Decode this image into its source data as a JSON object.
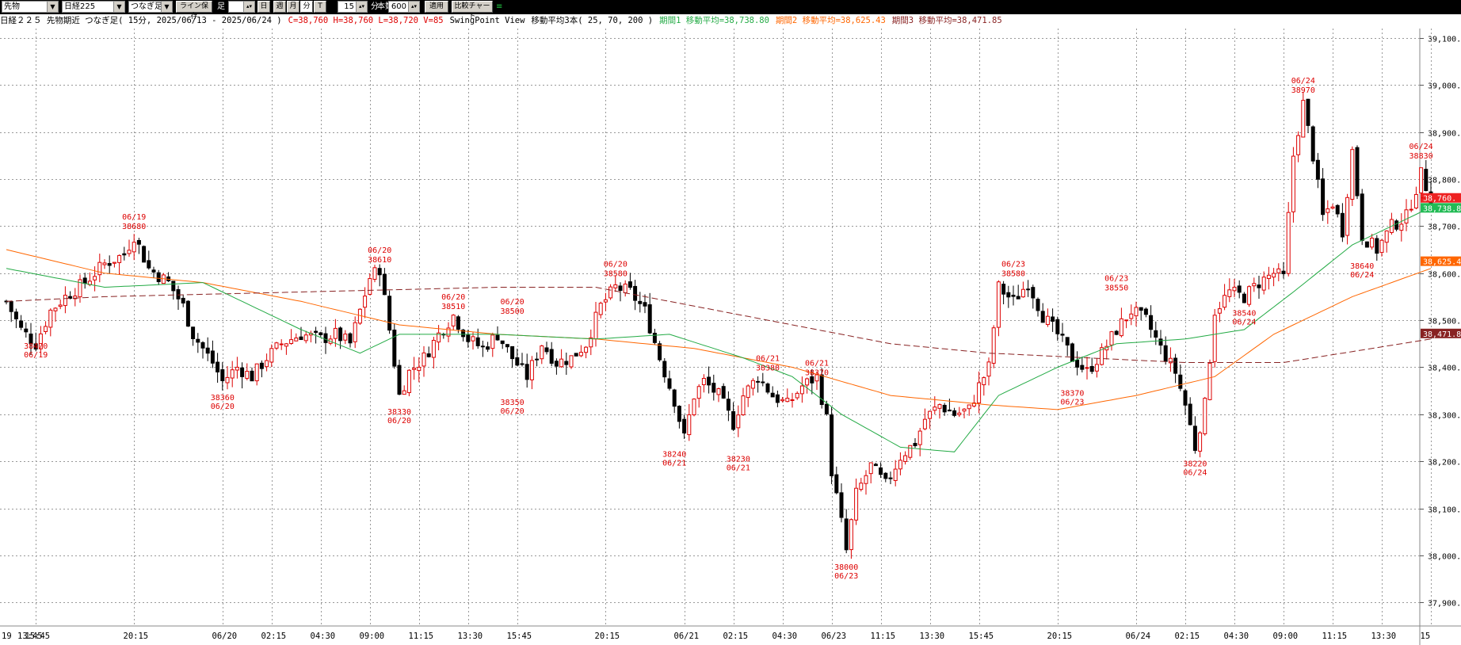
{
  "toolbar": {
    "market_select": "先物",
    "symbol_select": "日経225",
    "chain_select": "つなぎ足",
    "line_save_button": "ライン保存",
    "ashi_label": "足",
    "period_buttons": [
      "日",
      "週",
      "月",
      "分",
      "T"
    ],
    "active_period": "分",
    "interval_value": "15",
    "interval_unit": "分",
    "bars_value": "600",
    "bars_unit": "本数",
    "apply_button": "適用",
    "compare_button": "比較チャート"
  },
  "info": {
    "title": "日経２２５ 先物期近 つなぎ足( 15分, 2025/06/13 - 2025/06/24 )",
    "ohlc": "C=38,760 H=38,760 L=38,720 V=85",
    "indicator": "SwingPoint View",
    "ma_title": "移動平均3本( 25, 70, 200 )",
    "ma1_label": "期間1 移動平均=38,738.80",
    "ma2_label": "期間2 移動平均=38,625.43",
    "ma3_label": "期間3 移動平均=38,471.85"
  },
  "colors": {
    "ma1": "#22aa44",
    "ma2": "#ff6600",
    "ma3": "#882222",
    "swing": "#dd0000",
    "candle_up": "#dd0000",
    "candle_down": "#000000",
    "grid": "#999999"
  },
  "chart_data": {
    "type": "candlestick",
    "y_min": 37850,
    "y_max": 39120,
    "y_ticks": [
      "39,100.",
      "39,000.",
      "38,900.",
      "38,800.",
      "38,700.",
      "38,600.",
      "38,500.",
      "38,400.",
      "38,300.",
      "38,200.",
      "38,100.",
      "38,000.",
      "37,900."
    ],
    "y_tick_values": [
      39100,
      39000,
      38900,
      38800,
      38700,
      38600,
      38500,
      38400,
      38300,
      38200,
      38100,
      38000,
      37900
    ],
    "x_labels": [
      {
        "i": 0,
        "label": "19"
      },
      {
        "i": 2,
        "label": "13:45"
      },
      {
        "i": 6,
        "label": "15:45"
      },
      {
        "i": 26,
        "label": "20:15"
      },
      {
        "i": 44,
        "label": "06/20"
      },
      {
        "i": 54,
        "label": "02:15"
      },
      {
        "i": 64,
        "label": "04:30"
      },
      {
        "i": 74,
        "label": "09:00"
      },
      {
        "i": 84,
        "label": "11:15"
      },
      {
        "i": 94,
        "label": "13:30"
      },
      {
        "i": 104,
        "label": "15:45"
      },
      {
        "i": 122,
        "label": "20:15"
      },
      {
        "i": 138,
        "label": "06/21"
      },
      {
        "i": 148,
        "label": "02:15"
      },
      {
        "i": 158,
        "label": "04:30"
      },
      {
        "i": 168,
        "label": "06/23"
      },
      {
        "i": 178,
        "label": "11:15"
      },
      {
        "i": 188,
        "label": "13:30"
      },
      {
        "i": 198,
        "label": "15:45"
      },
      {
        "i": 214,
        "label": "20:15"
      },
      {
        "i": 230,
        "label": "06/24"
      },
      {
        "i": 240,
        "label": "02:15"
      },
      {
        "i": 250,
        "label": "04:30"
      },
      {
        "i": 260,
        "label": "09:00"
      },
      {
        "i": 270,
        "label": "11:15"
      },
      {
        "i": 280,
        "label": "13:30"
      },
      {
        "i": 290,
        "label": "15"
      }
    ],
    "x_total": 291,
    "anchors": [
      [
        0,
        38540
      ],
      [
        3,
        38480
      ],
      [
        6,
        38450
      ],
      [
        9,
        38520
      ],
      [
        12,
        38550
      ],
      [
        16,
        38580
      ],
      [
        20,
        38620
      ],
      [
        24,
        38640
      ],
      [
        26,
        38680
      ],
      [
        29,
        38610
      ],
      [
        33,
        38580
      ],
      [
        36,
        38530
      ],
      [
        38,
        38470
      ],
      [
        40,
        38440
      ],
      [
        42,
        38410
      ],
      [
        44,
        38370
      ],
      [
        47,
        38400
      ],
      [
        50,
        38380
      ],
      [
        53,
        38420
      ],
      [
        56,
        38450
      ],
      [
        60,
        38470
      ],
      [
        64,
        38460
      ],
      [
        67,
        38470
      ],
      [
        70,
        38450
      ],
      [
        72,
        38520
      ],
      [
        74,
        38590
      ],
      [
        76,
        38610
      ],
      [
        78,
        38480
      ],
      [
        80,
        38340
      ],
      [
        82,
        38390
      ],
      [
        85,
        38420
      ],
      [
        88,
        38470
      ],
      [
        91,
        38510
      ],
      [
        94,
        38460
      ],
      [
        97,
        38440
      ],
      [
        100,
        38470
      ],
      [
        103,
        38420
      ],
      [
        106,
        38380
      ],
      [
        109,
        38450
      ],
      [
        112,
        38410
      ],
      [
        115,
        38420
      ],
      [
        118,
        38450
      ],
      [
        121,
        38530
      ],
      [
        124,
        38570
      ],
      [
        127,
        38560
      ],
      [
        130,
        38520
      ],
      [
        133,
        38420
      ],
      [
        136,
        38330
      ],
      [
        138,
        38250
      ],
      [
        140,
        38340
      ],
      [
        142,
        38370
      ],
      [
        145,
        38340
      ],
      [
        148,
        38280
      ],
      [
        150,
        38340
      ],
      [
        153,
        38380
      ],
      [
        156,
        38340
      ],
      [
        159,
        38320
      ],
      [
        162,
        38360
      ],
      [
        165,
        38380
      ],
      [
        167,
        38290
      ],
      [
        168,
        38180
      ],
      [
        170,
        38070
      ],
      [
        171,
        38010
      ],
      [
        173,
        38130
      ],
      [
        176,
        38190
      ],
      [
        179,
        38150
      ],
      [
        182,
        38210
      ],
      [
        185,
        38240
      ],
      [
        187,
        38290
      ],
      [
        190,
        38320
      ],
      [
        193,
        38300
      ],
      [
        196,
        38310
      ],
      [
        198,
        38360
      ],
      [
        200,
        38400
      ],
      [
        202,
        38570
      ],
      [
        205,
        38540
      ],
      [
        208,
        38580
      ],
      [
        211,
        38510
      ],
      [
        214,
        38470
      ],
      [
        217,
        38420
      ],
      [
        220,
        38390
      ],
      [
        223,
        38430
      ],
      [
        226,
        38480
      ],
      [
        229,
        38520
      ],
      [
        232,
        38500
      ],
      [
        235,
        38440
      ],
      [
        238,
        38390
      ],
      [
        240,
        38320
      ],
      [
        242,
        38230
      ],
      [
        244,
        38320
      ],
      [
        246,
        38520
      ],
      [
        249,
        38560
      ],
      [
        252,
        38550
      ],
      [
        255,
        38580
      ],
      [
        258,
        38600
      ],
      [
        260,
        38590
      ],
      [
        262,
        38850
      ],
      [
        264,
        38960
      ],
      [
        266,
        38850
      ],
      [
        268,
        38720
      ],
      [
        270,
        38750
      ],
      [
        272,
        38690
      ],
      [
        274,
        38860
      ],
      [
        276,
        38680
      ],
      [
        279,
        38650
      ],
      [
        282,
        38700
      ],
      [
        285,
        38720
      ],
      [
        288,
        38810
      ],
      [
        290,
        38760
      ]
    ],
    "ma1": [
      [
        0,
        38610
      ],
      [
        20,
        38570
      ],
      [
        40,
        38580
      ],
      [
        60,
        38480
      ],
      [
        72,
        38430
      ],
      [
        80,
        38470
      ],
      [
        100,
        38470
      ],
      [
        120,
        38460
      ],
      [
        135,
        38470
      ],
      [
        150,
        38420
      ],
      [
        160,
        38380
      ],
      [
        170,
        38300
      ],
      [
        182,
        38230
      ],
      [
        193,
        38220
      ],
      [
        202,
        38340
      ],
      [
        214,
        38400
      ],
      [
        226,
        38450
      ],
      [
        240,
        38460
      ],
      [
        252,
        38480
      ],
      [
        262,
        38560
      ],
      [
        274,
        38660
      ],
      [
        290,
        38740
      ]
    ],
    "ma2": [
      [
        0,
        38650
      ],
      [
        20,
        38600
      ],
      [
        40,
        38580
      ],
      [
        60,
        38540
      ],
      [
        80,
        38490
      ],
      [
        100,
        38470
      ],
      [
        120,
        38460
      ],
      [
        140,
        38440
      ],
      [
        160,
        38400
      ],
      [
        180,
        38340
      ],
      [
        200,
        38320
      ],
      [
        214,
        38310
      ],
      [
        230,
        38340
      ],
      [
        246,
        38380
      ],
      [
        258,
        38470
      ],
      [
        274,
        38550
      ],
      [
        290,
        38610
      ]
    ],
    "ma3": [
      [
        0,
        38540
      ],
      [
        20,
        38550
      ],
      [
        60,
        38560
      ],
      [
        100,
        38570
      ],
      [
        120,
        38570
      ],
      [
        140,
        38530
      ],
      [
        160,
        38490
      ],
      [
        180,
        38450
      ],
      [
        200,
        38430
      ],
      [
        220,
        38420
      ],
      [
        240,
        38410
      ],
      [
        260,
        38410
      ],
      [
        290,
        38460
      ]
    ],
    "swings": [
      {
        "i": 6,
        "top": "",
        "bottom": "06/19",
        "value": "38470",
        "pos": "below"
      },
      {
        "i": 26,
        "top": "06/19",
        "value": "38680",
        "pos": "above"
      },
      {
        "i": 44,
        "top": "",
        "bottom": "06/20",
        "value": "38360",
        "pos": "below"
      },
      {
        "i": 76,
        "top": "06/20",
        "value": "38610",
        "pos": "above"
      },
      {
        "i": 80,
        "top": "",
        "bottom": "06/20",
        "value": "38330",
        "pos": "below"
      },
      {
        "i": 91,
        "top": "06/20",
        "value": "38510",
        "pos": "above"
      },
      {
        "i": 103,
        "top": "06/20",
        "value": "38500",
        "pos": "above"
      },
      {
        "i": 103,
        "top": "",
        "bottom": "06/20",
        "value": "38350",
        "pos": "below2"
      },
      {
        "i": 124,
        "top": "06/20",
        "value": "38580",
        "pos": "above"
      },
      {
        "i": 136,
        "top": "",
        "bottom": "06/21",
        "value": "38240",
        "pos": "below"
      },
      {
        "i": 149,
        "top": "",
        "bottom": "06/21",
        "value": "38230",
        "pos": "below"
      },
      {
        "i": 155,
        "top": "06/21",
        "value": "38380",
        "pos": "above"
      },
      {
        "i": 165,
        "top": "06/21",
        "value": "38370",
        "pos": "above"
      },
      {
        "i": 171,
        "top": "",
        "bottom": "06/23",
        "value": "38000",
        "pos": "below"
      },
      {
        "i": 205,
        "top": "06/23",
        "value": "38580",
        "pos": "above"
      },
      {
        "i": 217,
        "top": "",
        "bottom": "06/23",
        "value": "38370",
        "pos": "below"
      },
      {
        "i": 226,
        "top": "06/23",
        "value": "38550",
        "pos": "above"
      },
      {
        "i": 242,
        "top": "",
        "bottom": "06/24",
        "value": "38220",
        "pos": "below"
      },
      {
        "i": 252,
        "top": "",
        "bottom": "06/24",
        "value": "38540",
        "pos": "below"
      },
      {
        "i": 264,
        "top": "06/24",
        "value": "38970",
        "pos": "above"
      },
      {
        "i": 276,
        "top": "",
        "bottom": "06/24",
        "value": "38640",
        "pos": "below"
      },
      {
        "i": 288,
        "top": "06/24",
        "value": "38830",
        "pos": "above"
      }
    ],
    "price_tags": [
      {
        "value": 38760,
        "label": "38,760.",
        "color": "#ee2222"
      },
      {
        "value": 38738.8,
        "label": "38,738.8",
        "color": "#22bb55"
      },
      {
        "value": 38625.43,
        "label": "38,625.4",
        "color": "#ff6600"
      },
      {
        "value": 38471.85,
        "label": "38,471.8",
        "color": "#882222"
      }
    ]
  }
}
